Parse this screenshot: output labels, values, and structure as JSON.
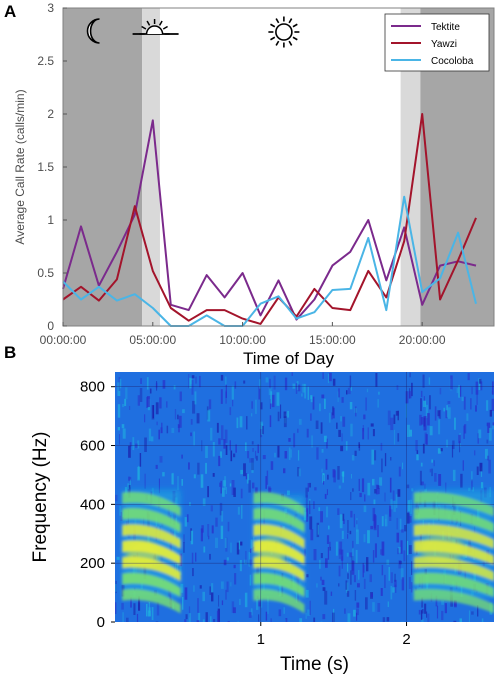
{
  "chart_data": [
    {
      "panel_label": "A",
      "type": "line",
      "xlabel": "Time of Day",
      "ylabel": "Average Call Rate (calls/min)",
      "xlim": [
        0,
        24
      ],
      "ylim": [
        0,
        3
      ],
      "xticks": [
        "00:00:00",
        "05:00:00",
        "10:00:00",
        "15:00:00",
        "20:00:00"
      ],
      "xtick_values": [
        0,
        5,
        10,
        15,
        20
      ],
      "yticks": [
        "0",
        "0.5",
        "1",
        "1.5",
        "2",
        "2.5",
        "3"
      ],
      "ytick_values": [
        0,
        0.5,
        1,
        1.5,
        2,
        2.5,
        3
      ],
      "shaded_bands": [
        {
          "from": 0,
          "to": 4.4,
          "color": "#a6a6a6",
          "meaning": "night"
        },
        {
          "from": 4.4,
          "to": 5.4,
          "color": "#d9d9d9",
          "meaning": "dawn"
        },
        {
          "from": 18.8,
          "to": 19.9,
          "color": "#d9d9d9",
          "meaning": "dusk"
        },
        {
          "from": 19.9,
          "to": 24,
          "color": "#a6a6a6",
          "meaning": "night"
        }
      ],
      "icons": [
        {
          "name": "moon-icon",
          "x": 1.7
        },
        {
          "name": "sunrise-icon",
          "x": 5.1
        },
        {
          "name": "sun-icon",
          "x": 12.3
        }
      ],
      "legend_position": "top-right",
      "series": [
        {
          "name": "Tektite",
          "color": "#7b2a8c",
          "x": [
            0,
            1,
            2,
            3,
            4,
            5,
            6,
            7,
            8,
            9,
            10,
            11,
            12,
            13,
            14,
            15,
            16,
            17,
            18,
            19,
            20,
            21,
            22,
            23
          ],
          "y": [
            0.35,
            0.94,
            0.38,
            0.7,
            1.05,
            1.94,
            0.2,
            0.15,
            0.48,
            0.27,
            0.5,
            0.1,
            0.43,
            0.06,
            0.25,
            0.57,
            0.7,
            1.0,
            0.43,
            0.93,
            0.2,
            0.57,
            0.61,
            0.57
          ]
        },
        {
          "name": "Yawzi",
          "color": "#a3142b",
          "x": [
            0,
            1,
            2,
            3,
            4,
            5,
            6,
            7,
            8,
            9,
            10,
            11,
            12,
            13,
            14,
            15,
            16,
            17,
            18,
            19,
            20,
            21,
            22,
            23
          ],
          "y": [
            0.25,
            0.37,
            0.24,
            0.44,
            1.13,
            0.52,
            0.17,
            0.05,
            0.15,
            0.15,
            0.07,
            0.02,
            0.27,
            0.09,
            0.35,
            0.17,
            0.15,
            0.52,
            0.27,
            0.8,
            2.0,
            0.25,
            0.62,
            1.02
          ]
        },
        {
          "name": "Cocoloba",
          "color": "#4ab5e6",
          "x": [
            0,
            1,
            2,
            3,
            4,
            5,
            6,
            7,
            8,
            9,
            10,
            11,
            12,
            13,
            14,
            15,
            16,
            17,
            18,
            19,
            20,
            21,
            22,
            23
          ],
          "y": [
            0.42,
            0.25,
            0.37,
            0.24,
            0.3,
            0.17,
            0.0,
            0.0,
            0.1,
            0.0,
            0.0,
            0.21,
            0.28,
            0.07,
            0.13,
            0.34,
            0.35,
            0.83,
            0.15,
            1.22,
            0.32,
            0.45,
            0.88,
            0.21
          ]
        }
      ]
    },
    {
      "panel_label": "B",
      "type": "heatmap",
      "xlabel": "Time (s)",
      "ylabel": "Frequency (Hz)",
      "xlim": [
        0,
        2.6
      ],
      "ylim": [
        0,
        850
      ],
      "xticks": [
        "1",
        "2"
      ],
      "xtick_values": [
        1,
        2
      ],
      "yticks": [
        "0",
        "200",
        "400",
        "600",
        "800"
      ],
      "ytick_values": [
        0,
        200,
        400,
        600,
        800
      ],
      "grid": true,
      "colormap": [
        "#2a2cc9",
        "#1f6fe0",
        "#1fb0e0",
        "#27d6b8",
        "#7fe66a",
        "#e3ec3a"
      ],
      "energy_bursts": [
        {
          "t_start": 0.05,
          "t_end": 0.45,
          "f_low": 80,
          "f_high": 450,
          "peak_freq": 230,
          "intensity": 0.92
        },
        {
          "t_start": 0.95,
          "t_end": 1.3,
          "f_low": 80,
          "f_high": 430,
          "peak_freq": 240,
          "intensity": 0.9
        },
        {
          "t_start": 2.05,
          "t_end": 2.6,
          "f_low": 80,
          "f_high": 450,
          "peak_freq": 250,
          "intensity": 0.75
        }
      ]
    }
  ]
}
